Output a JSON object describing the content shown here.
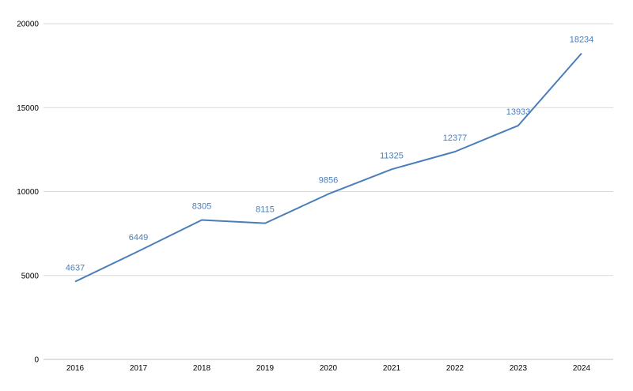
{
  "chart_data": {
    "type": "line",
    "x": [
      "2016",
      "2017",
      "2018",
      "2019",
      "2020",
      "2021",
      "2022",
      "2023",
      "2024"
    ],
    "values": [
      4637,
      6449,
      8305,
      8115,
      9856,
      11325,
      12377,
      13933,
      18234
    ],
    "yticks": [
      "0",
      "5000",
      "10000",
      "15000",
      "20000"
    ],
    "ylim": [
      0,
      20000
    ],
    "grid": true,
    "legend": "none",
    "colors": {
      "line": "#4a7ebb",
      "label": "#4a7ebb",
      "grid": "#d9d9d9",
      "axis": "#bfbfbf"
    }
  }
}
